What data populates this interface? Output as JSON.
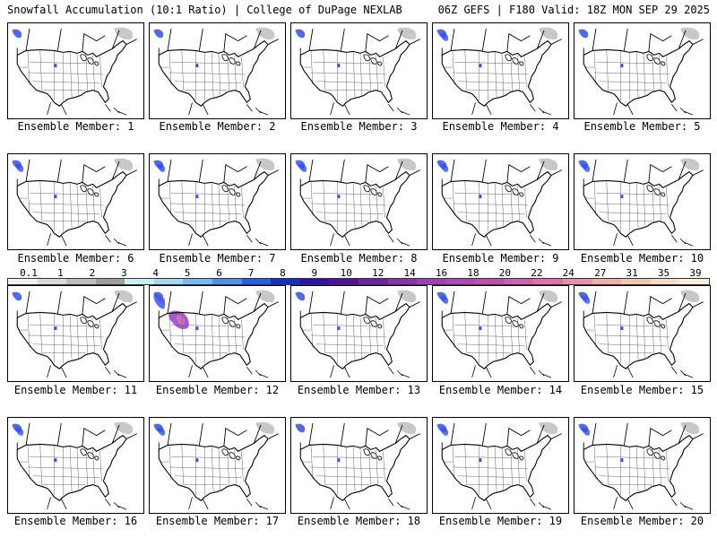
{
  "header": {
    "left": "Snowfall Accumulation (10:1 Ratio) | College of DuPage NEXLAB",
    "right": "06Z GEFS | F180 Valid: 18Z MON SEP 29 2025"
  },
  "panels": [
    {
      "label": "Ensemble Member: 1",
      "snow": "light"
    },
    {
      "label": "Ensemble Member: 2",
      "snow": "light"
    },
    {
      "label": "Ensemble Member: 3",
      "snow": "light"
    },
    {
      "label": "Ensemble Member: 4",
      "snow": "moderate"
    },
    {
      "label": "Ensemble Member: 5",
      "snow": "light"
    },
    {
      "label": "Ensemble Member: 6",
      "snow": "moderate"
    },
    {
      "label": "Ensemble Member: 7",
      "snow": "moderate"
    },
    {
      "label": "Ensemble Member: 8",
      "snow": "moderate"
    },
    {
      "label": "Ensemble Member: 9",
      "snow": "moderate"
    },
    {
      "label": "Ensemble Member: 10",
      "snow": "moderate"
    },
    {
      "label": "Ensemble Member: 11",
      "snow": "light"
    },
    {
      "label": "Ensemble Member: 12",
      "snow": "heavy"
    },
    {
      "label": "Ensemble Member: 13",
      "snow": "light"
    },
    {
      "label": "Ensemble Member: 14",
      "snow": "moderate"
    },
    {
      "label": "Ensemble Member: 15",
      "snow": "moderate"
    },
    {
      "label": "Ensemble Member: 16",
      "snow": "moderate"
    },
    {
      "label": "Ensemble Member: 17",
      "snow": "moderate"
    },
    {
      "label": "Ensemble Member: 18",
      "snow": "light"
    },
    {
      "label": "Ensemble Member: 19",
      "snow": "moderate"
    },
    {
      "label": "Ensemble Member: 20",
      "snow": "moderate"
    }
  ],
  "colorbar": {
    "labels": [
      "0.1",
      "1",
      "2",
      "3",
      "4",
      "5",
      "6",
      "7",
      "8",
      "9",
      "10",
      "12",
      "14",
      "16",
      "18",
      "20",
      "22",
      "24",
      "27",
      "31",
      "35",
      "39"
    ],
    "colors": [
      "#f2f2f2",
      "#d8d8d8",
      "#bdbdbd",
      "#9e9e9e",
      "#c8f0f0",
      "#a0d8f0",
      "#78b8f0",
      "#5090f0",
      "#2060f0",
      "#1030d0",
      "#3010b0",
      "#5010a0",
      "#7020a8",
      "#9030b0",
      "#a040b8",
      "#b048b8",
      "#c050b0",
      "#d060b0",
      "#e070b0",
      "#e890a8",
      "#f0b0a8",
      "#f4c8b0",
      "#f8dcc8",
      "#fceee0"
    ]
  },
  "colors": {
    "snow_blue": "#3050f0",
    "snow_purple": "#9040c0",
    "snow_pink": "#d070c0",
    "snow_gray": "#b0b0b0"
  }
}
